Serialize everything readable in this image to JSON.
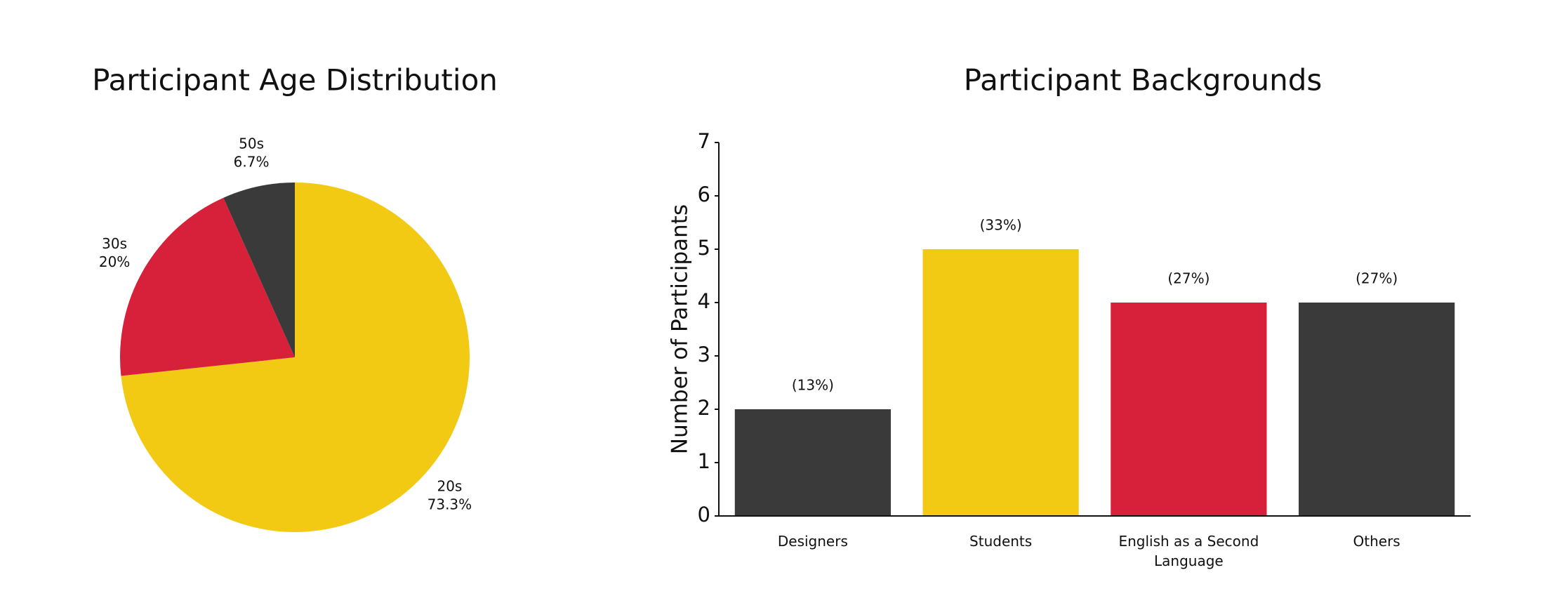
{
  "chart_data": [
    {
      "type": "pie",
      "title": "Participant Age Distribution",
      "categories": [
        "20s",
        "30s",
        "50s"
      ],
      "values": [
        73.3,
        20,
        6.7
      ],
      "value_labels": [
        "73.3%",
        "20%",
        "6.7%"
      ],
      "colors": [
        "#f2c913",
        "#d7203a",
        "#3a3a3a"
      ]
    },
    {
      "type": "bar",
      "title": "Participant Backgrounds",
      "ylabel": "Number of Participants",
      "categories": [
        "Designers",
        "Students",
        "English as a Second Language",
        "Others"
      ],
      "values": [
        2,
        5,
        4,
        4
      ],
      "value_labels": [
        "(13%)",
        "(33%)",
        "(27%)",
        "(27%)"
      ],
      "colors": [
        "#3a3a3a",
        "#f2c913",
        "#d7203a",
        "#3a3a3a"
      ],
      "ylim": [
        0,
        7
      ],
      "yticks": [
        0,
        1,
        2,
        3,
        4,
        5,
        6,
        7
      ],
      "grid": false
    }
  ]
}
